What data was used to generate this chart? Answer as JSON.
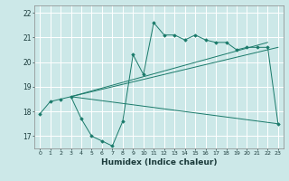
{
  "title": "",
  "xlabel": "Humidex (Indice chaleur)",
  "background_color": "#cce8e8",
  "grid_color": "#ffffff",
  "line_color": "#1a7a6a",
  "x_ticks": [
    0,
    1,
    2,
    3,
    4,
    5,
    6,
    7,
    8,
    9,
    10,
    11,
    12,
    13,
    14,
    15,
    16,
    17,
    18,
    19,
    20,
    21,
    22,
    23
  ],
  "ylim": [
    16.5,
    22.3
  ],
  "xlim": [
    -0.5,
    23.5
  ],
  "y_ticks": [
    17,
    18,
    19,
    20,
    21,
    22
  ],
  "line1_x": [
    0,
    1,
    2,
    3,
    4,
    5,
    6,
    7,
    8,
    9,
    10,
    11,
    12,
    13,
    14,
    15,
    16,
    17,
    18,
    19,
    20,
    21,
    22,
    23
  ],
  "line1_y": [
    17.9,
    18.4,
    18.5,
    18.6,
    17.7,
    17.0,
    16.8,
    16.6,
    17.6,
    20.3,
    19.5,
    21.6,
    21.1,
    21.1,
    20.9,
    21.1,
    20.9,
    20.8,
    20.8,
    20.5,
    20.6,
    20.6,
    20.6,
    17.5
  ],
  "line2_x": [
    3,
    23
  ],
  "line2_y": [
    18.6,
    17.5
  ],
  "line3_x": [
    3,
    23
  ],
  "line3_y": [
    18.6,
    20.6
  ],
  "line4_x": [
    3,
    22
  ],
  "line4_y": [
    18.6,
    20.8
  ]
}
